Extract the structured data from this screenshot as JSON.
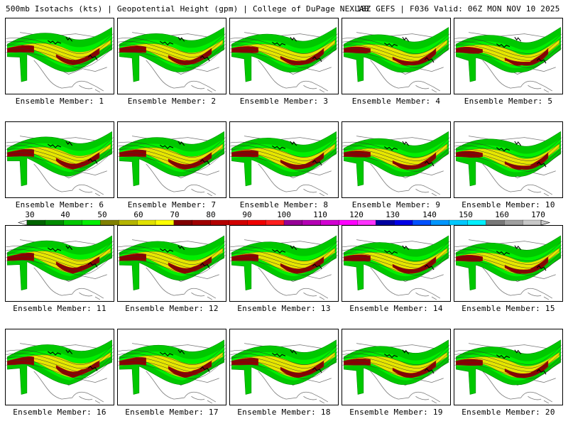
{
  "header": {
    "left": "500mb Isotachs (kts) | Geopotential Height (gpm) | College of DuPage NEXLAB",
    "right": "18Z GEFS | F036 Valid: 06Z MON NOV 10 2025"
  },
  "panels": [
    "Ensemble Member: 1",
    "Ensemble Member: 2",
    "Ensemble Member: 3",
    "Ensemble Member: 4",
    "Ensemble Member: 5",
    "Ensemble Member: 6",
    "Ensemble Member: 7",
    "Ensemble Member: 8",
    "Ensemble Member: 9",
    "Ensemble Member: 10",
    "Ensemble Member: 11",
    "Ensemble Member: 12",
    "Ensemble Member: 13",
    "Ensemble Member: 14",
    "Ensemble Member: 15",
    "Ensemble Member: 16",
    "Ensemble Member: 17",
    "Ensemble Member: 18",
    "Ensemble Member: 19",
    "Ensemble Member: 20"
  ],
  "legend": {
    "labels": [
      "30",
      "40",
      "50",
      "60",
      "70",
      "80",
      "90",
      "100",
      "110",
      "120",
      "130",
      "140",
      "150",
      "160",
      "170"
    ],
    "colors": [
      "#006400",
      "#008c00",
      "#00c800",
      "#00f000",
      "#808000",
      "#b4b400",
      "#e1e100",
      "#ffff00",
      "#800000",
      "#a00000",
      "#b40000",
      "#d20000",
      "#f00000",
      "#ff1e1e",
      "#960096",
      "#b400b4",
      "#d200d2",
      "#ff00ff",
      "#ff32ff",
      "#0000a0",
      "#0000e6",
      "#0050ff",
      "#0096ff",
      "#00c8ff",
      "#00f0ff",
      "#787878",
      "#a0a0a0",
      "#c8c8c8"
    ]
  },
  "colors": {
    "map_line": "#777777",
    "border": "#000000",
    "jet_dark": "#8b0000",
    "jet_core": "#b40000",
    "jet_yellow": "#e6e600",
    "jet_olive": "#9a9a00",
    "wind_green": "#00c800",
    "wind_lime": "#00f000",
    "wind_dark": "#008c00"
  }
}
